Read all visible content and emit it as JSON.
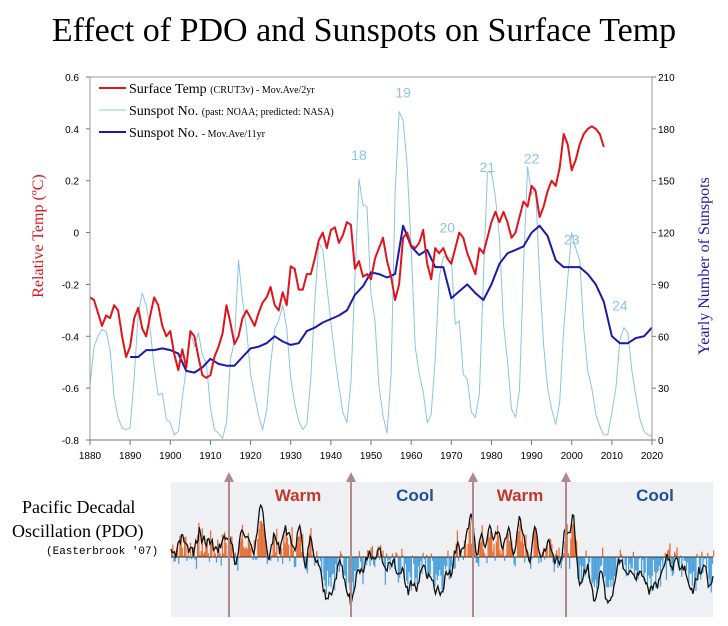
{
  "page": {
    "title": "Effect of PDO and Sunspots on Surface Temp"
  },
  "pdo": {
    "label_line1": "Pacific Decadal",
    "label_line2": "Oscillation (PDO)",
    "source": "(Easterbrook '07)",
    "phases": [
      "Warm",
      "Cool",
      "Warm",
      "Cool"
    ],
    "phase_colors": [
      "#c0392b",
      "#1f4e9c",
      "#c0392b",
      "#1f4e9c"
    ]
  },
  "chart_data": {
    "type": "line",
    "title": "Effect of PDO and Sunspots on Surface Temp",
    "xlabel": "",
    "ylabel": "Relative Temp (ºC)",
    "y2label": "Yearly Number of Sunspots",
    "xlim": [
      1880,
      2020
    ],
    "ylim": [
      -0.8,
      0.6
    ],
    "y2lim": [
      0,
      210
    ],
    "x_ticks": [
      1880,
      1890,
      1900,
      1910,
      1920,
      1930,
      1940,
      1950,
      1960,
      1970,
      1980,
      1990,
      2000,
      2010,
      2020
    ],
    "y_ticks": [
      "0.6",
      "0.4",
      "0.2",
      "0",
      "-0.2",
      "-0.4",
      "-0.6",
      "-0.8"
    ],
    "y2_ticks": [
      210,
      180,
      150,
      120,
      90,
      60,
      30,
      0
    ],
    "legend": [
      {
        "main": "Surface Temp",
        "sub": "(CRUT3v) - Mov.Ave/2yr",
        "color": "#e0141a"
      },
      {
        "main": "Sunspot No.",
        "sub": "(past: NOAA; predicted: NASA)",
        "color": "#8cc3e6"
      },
      {
        "main": "Sunspot No.",
        "sub": "- Mov.Ave/11yr",
        "color": "#1a1aa8"
      }
    ],
    "cycle_labels": [
      {
        "text": "18",
        "x": 1947,
        "y": 162
      },
      {
        "text": "19",
        "x": 1958,
        "y": 198
      },
      {
        "text": "20",
        "x": 1969,
        "y": 120
      },
      {
        "text": "21",
        "x": 1979,
        "y": 155
      },
      {
        "text": "22",
        "x": 1990,
        "y": 160
      },
      {
        "text": "23",
        "x": 2000,
        "y": 113
      },
      {
        "text": "24",
        "x": 2012,
        "y": 75
      }
    ],
    "series": [
      {
        "name": "Surface Temp",
        "axis": "left",
        "color": "#e0141a",
        "x": [
          1880,
          1881,
          1882,
          1883,
          1884,
          1885,
          1886,
          1887,
          1888,
          1889,
          1890,
          1891,
          1892,
          1893,
          1894,
          1895,
          1896,
          1897,
          1898,
          1899,
          1900,
          1901,
          1902,
          1903,
          1904,
          1905,
          1906,
          1907,
          1908,
          1909,
          1910,
          1911,
          1912,
          1913,
          1914,
          1915,
          1916,
          1917,
          1918,
          1919,
          1920,
          1921,
          1922,
          1923,
          1924,
          1925,
          1926,
          1927,
          1928,
          1929,
          1930,
          1931,
          1932,
          1933,
          1934,
          1935,
          1936,
          1937,
          1938,
          1939,
          1940,
          1941,
          1942,
          1943,
          1944,
          1945,
          1946,
          1947,
          1948,
          1949,
          1950,
          1951,
          1952,
          1953,
          1954,
          1955,
          1956,
          1957,
          1958,
          1959,
          1960,
          1961,
          1962,
          1963,
          1964,
          1965,
          1966,
          1967,
          1968,
          1969,
          1970,
          1971,
          1972,
          1973,
          1974,
          1975,
          1976,
          1977,
          1978,
          1979,
          1980,
          1981,
          1982,
          1983,
          1984,
          1985,
          1986,
          1987,
          1988,
          1989,
          1990,
          1991,
          1992,
          1993,
          1994,
          1995,
          1996,
          1997,
          1998,
          1999,
          2000,
          2001,
          2002,
          2003,
          2004,
          2005,
          2006,
          2007,
          2008
        ],
        "values": [
          -0.25,
          -0.26,
          -0.31,
          -0.36,
          -0.32,
          -0.33,
          -0.28,
          -0.3,
          -0.4,
          -0.48,
          -0.44,
          -0.33,
          -0.29,
          -0.37,
          -0.4,
          -0.32,
          -0.25,
          -0.28,
          -0.36,
          -0.4,
          -0.38,
          -0.47,
          -0.53,
          -0.45,
          -0.52,
          -0.38,
          -0.4,
          -0.48,
          -0.55,
          -0.56,
          -0.55,
          -0.48,
          -0.44,
          -0.39,
          -0.28,
          -0.35,
          -0.43,
          -0.4,
          -0.33,
          -0.3,
          -0.33,
          -0.36,
          -0.31,
          -0.27,
          -0.25,
          -0.21,
          -0.28,
          -0.3,
          -0.23,
          -0.28,
          -0.13,
          -0.14,
          -0.22,
          -0.22,
          -0.16,
          -0.16,
          -0.1,
          -0.03,
          0.0,
          -0.06,
          0.01,
          0.02,
          -0.04,
          -0.01,
          0.04,
          0.03,
          -0.14,
          -0.11,
          -0.17,
          -0.16,
          -0.18,
          -0.1,
          -0.06,
          -0.02,
          -0.11,
          -0.17,
          -0.26,
          -0.2,
          -0.02,
          0.0,
          -0.05,
          -0.06,
          -0.04,
          0.01,
          -0.12,
          -0.18,
          -0.06,
          -0.08,
          -0.06,
          -0.1,
          -0.12,
          -0.06,
          0.0,
          -0.02,
          -0.08,
          -0.12,
          -0.16,
          -0.06,
          -0.08,
          -0.02,
          0.04,
          0.08,
          0.04,
          0.08,
          0.04,
          -0.02,
          0.0,
          0.06,
          0.12,
          0.1,
          0.18,
          0.16,
          0.06,
          0.1,
          0.16,
          0.2,
          0.18,
          0.25,
          0.38,
          0.34,
          0.24,
          0.28,
          0.34,
          0.38,
          0.4,
          0.41,
          0.4,
          0.38,
          0.33
        ]
      },
      {
        "name": "Sunspot No. (past: NOAA; predicted: NASA)",
        "axis": "right",
        "color": "#8cc3e6",
        "x": [
          1880,
          1881,
          1882,
          1883,
          1884,
          1885,
          1886,
          1887,
          1888,
          1889,
          1890,
          1891,
          1892,
          1893,
          1894,
          1895,
          1896,
          1897,
          1898,
          1899,
          1900,
          1901,
          1902,
          1903,
          1904,
          1905,
          1906,
          1907,
          1908,
          1909,
          1910,
          1911,
          1912,
          1913,
          1914,
          1915,
          1916,
          1917,
          1918,
          1919,
          1920,
          1921,
          1922,
          1923,
          1924,
          1925,
          1926,
          1927,
          1928,
          1929,
          1930,
          1931,
          1932,
          1933,
          1934,
          1935,
          1936,
          1937,
          1938,
          1939,
          1940,
          1941,
          1942,
          1943,
          1944,
          1945,
          1946,
          1947,
          1948,
          1949,
          1950,
          1951,
          1952,
          1953,
          1954,
          1955,
          1956,
          1957,
          1958,
          1959,
          1960,
          1961,
          1962,
          1963,
          1964,
          1965,
          1966,
          1967,
          1968,
          1969,
          1970,
          1971,
          1972,
          1973,
          1974,
          1975,
          1976,
          1977,
          1978,
          1979,
          1980,
          1981,
          1982,
          1983,
          1984,
          1985,
          1986,
          1987,
          1988,
          1989,
          1990,
          1991,
          1992,
          1993,
          1994,
          1995,
          1996,
          1997,
          1998,
          1999,
          2000,
          2001,
          2002,
          2003,
          2004,
          2005,
          2006,
          2007,
          2008,
          2009,
          2010,
          2011,
          2012,
          2013,
          2014,
          2015,
          2016,
          2017,
          2018,
          2019,
          2020
        ],
        "values": [
          32,
          54,
          60,
          64,
          63,
          52,
          25,
          13,
          7,
          6,
          7,
          36,
          73,
          85,
          78,
          64,
          42,
          26,
          27,
          12,
          10,
          3,
          5,
          24,
          42,
          63,
          54,
          62,
          49,
          44,
          19,
          6,
          4,
          1,
          10,
          47,
          57,
          104,
          81,
          64,
          38,
          26,
          14,
          6,
          17,
          44,
          64,
          69,
          78,
          65,
          36,
          21,
          11,
          6,
          9,
          36,
          80,
          114,
          110,
          89,
          68,
          48,
          31,
          16,
          10,
          33,
          93,
          151,
          136,
          135,
          84,
          69,
          31,
          14,
          4,
          38,
          142,
          190,
          185,
          159,
          112,
          54,
          38,
          28,
          10,
          15,
          47,
          94,
          106,
          106,
          105,
          67,
          69,
          38,
          35,
          16,
          13,
          27,
          93,
          155,
          155,
          141,
          116,
          67,
          46,
          18,
          13,
          29,
          100,
          158,
          142,
          146,
          94,
          55,
          30,
          18,
          9,
          22,
          64,
          93,
          120,
          111,
          104,
          64,
          40,
          30,
          15,
          8,
          3,
          3,
          16,
          30,
          58,
          65,
          62,
          40,
          25,
          12,
          5,
          3,
          2
        ]
      },
      {
        "name": "Sunspot No. - Mov.Ave/11yr",
        "axis": "right",
        "color": "#1a1aa8",
        "x": [
          1890,
          1892,
          1894,
          1896,
          1898,
          1900,
          1902,
          1904,
          1906,
          1908,
          1910,
          1912,
          1914,
          1916,
          1918,
          1920,
          1922,
          1924,
          1926,
          1928,
          1930,
          1932,
          1934,
          1936,
          1938,
          1940,
          1942,
          1944,
          1946,
          1948,
          1950,
          1952,
          1954,
          1956,
          1958,
          1960,
          1962,
          1964,
          1966,
          1968,
          1970,
          1972,
          1974,
          1976,
          1978,
          1980,
          1982,
          1984,
          1986,
          1988,
          1990,
          1992,
          1994,
          1996,
          1998,
          2000,
          2002,
          2004,
          2006,
          2008,
          2010,
          2012,
          2014,
          2016,
          2018,
          2020
        ],
        "values": [
          48,
          48,
          52,
          52,
          53,
          52,
          50,
          40,
          39,
          42,
          47,
          44,
          43,
          43,
          48,
          53,
          54,
          56,
          60,
          57,
          55,
          56,
          63,
          65,
          68,
          70,
          72,
          75,
          84,
          89,
          97,
          96,
          94,
          96,
          124,
          112,
          107,
          110,
          100,
          100,
          82,
          86,
          90,
          85,
          81,
          90,
          102,
          108,
          110,
          112,
          120,
          124,
          118,
          104,
          100,
          100,
          100,
          96,
          90,
          80,
          60,
          56,
          56,
          59,
          60,
          65
        ]
      }
    ]
  }
}
